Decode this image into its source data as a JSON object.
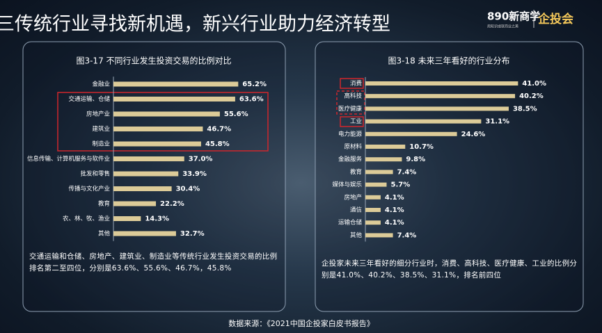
{
  "title": "三传统行业寻找新机遇，新兴行业助力经济转型",
  "logo": {
    "brand": "890新商学",
    "slogan": "用知识成就商业之美",
    "name": "企投会"
  },
  "chart_data": [
    {
      "type": "bar",
      "orientation": "horizontal",
      "title": "图3-17 不同行业发生投资交易的比例对比",
      "categories": [
        "金融业",
        "交通运输、仓储",
        "房地产业",
        "建筑业",
        "制造业",
        "信息传输、计算机服务与软件业",
        "批发和零售",
        "传播与文化产业",
        "教育",
        "农、林、牧、渔业",
        "其他"
      ],
      "values": [
        65.2,
        63.6,
        55.6,
        46.7,
        45.8,
        37.0,
        33.9,
        30.4,
        22.2,
        14.3,
        32.7
      ],
      "value_labels": [
        "65.2%",
        "63.6%",
        "55.6%",
        "46.7%",
        "45.8%",
        "37.0%",
        "33.9%",
        "30.4%",
        "22.2%",
        "14.3%",
        "32.7%"
      ],
      "color": "#dccb98",
      "note": "交通运输和仓储、房地产、建筑业、制造业等传统行业发生投资交易的比例排名第二至四位，分别是63.6%、55.6%、46.7%，45.8%"
    },
    {
      "type": "bar",
      "orientation": "horizontal",
      "title": "图3-18 未来三年看好的行业分布",
      "categories": [
        "消费",
        "高科技",
        "医疗健康",
        "工业",
        "电力能源",
        "原材料",
        "金融服务",
        "教育",
        "媒体与娱乐",
        "房地产",
        "通信",
        "运输仓储",
        "其他"
      ],
      "values": [
        41.0,
        40.2,
        38.5,
        31.1,
        24.6,
        10.7,
        9.8,
        7.4,
        5.7,
        4.1,
        4.1,
        4.1,
        7.4
      ],
      "value_labels": [
        "41.0%",
        "40.2%",
        "38.5%",
        "31.1%",
        "24.6%",
        "10.7%",
        "9.8%",
        "7.4%",
        "5.7%",
        "4.1%",
        "4.1%",
        "4.1%",
        "7.4%"
      ],
      "color": "#dccb98",
      "note": "企投家未来三年看好的细分行业时，消费、高科技、医疗健康、工业的比例分别是41.0%、40.2%、38.5%、31.1%，排名前四位"
    }
  ],
  "source": "数据来源：《2021中国企投家白皮书报告》"
}
